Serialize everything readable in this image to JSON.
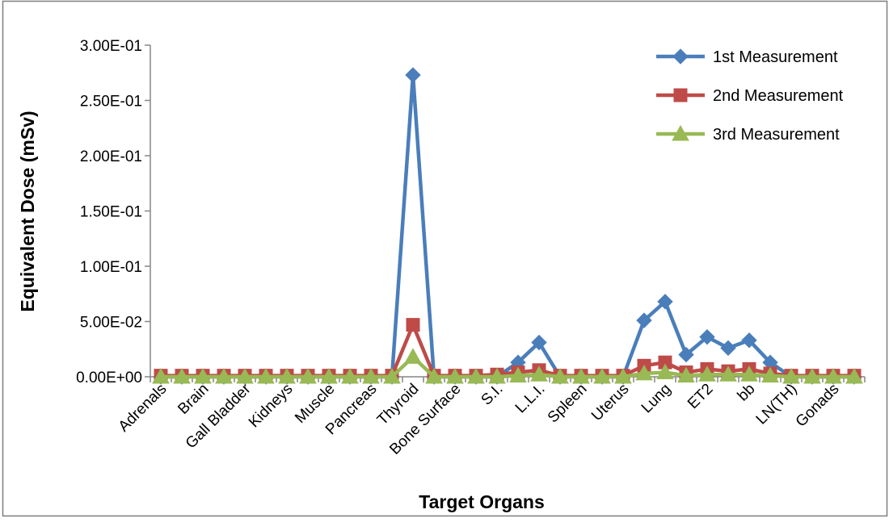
{
  "chart_data": {
    "type": "line",
    "xlabel": "Target Organs",
    "ylabel": "Equivalent Dose (mSv)",
    "ylim": [
      0,
      0.3
    ],
    "yticks": [
      0,
      0.05,
      0.1,
      0.15,
      0.2,
      0.25,
      0.3
    ],
    "ytick_labels": [
      "0.00E+00",
      "5.00E-02",
      "1.00E-01",
      "1.50E-01",
      "2.00E-01",
      "2.50E-01",
      "3.00E-01"
    ],
    "grid": false,
    "legend_position": "top-right",
    "categories": [
      "Adrenals",
      "",
      "Brain",
      "",
      "Gall Bladder",
      "",
      "Kidneys",
      "",
      "Muscle",
      "",
      "Pancreas",
      "",
      "Thyroid",
      "",
      "Bone Surface",
      "",
      "S.I.",
      "",
      "L.L.I.",
      "",
      "Spleen",
      "",
      "Uterus",
      "",
      "Lung",
      "",
      "ET2",
      "",
      "bb",
      "",
      "LN(TH)",
      "",
      "Gonads",
      ""
    ],
    "series": [
      {
        "name": "1st Measurement",
        "color": "#4a7ebb",
        "marker": "diamond",
        "values": [
          0,
          0,
          0,
          0,
          0,
          0,
          0,
          0,
          0,
          0,
          0,
          0,
          0.273,
          0,
          0,
          0,
          0,
          0.013,
          0.031,
          0,
          0,
          0,
          0,
          0.051,
          0.068,
          0.02,
          0.036,
          0.026,
          0.033,
          0.013,
          0,
          0,
          0,
          0
        ]
      },
      {
        "name": "2nd Measurement",
        "color": "#be4b48",
        "marker": "square",
        "values": [
          0.001,
          0.001,
          0.001,
          0.001,
          0.001,
          0.001,
          0.001,
          0.001,
          0.001,
          0.001,
          0.001,
          0.001,
          0.047,
          0.001,
          0.001,
          0.001,
          0.002,
          0.004,
          0.006,
          0.001,
          0.001,
          0.001,
          0.001,
          0.01,
          0.013,
          0.004,
          0.007,
          0.005,
          0.007,
          0.003,
          0.001,
          0.001,
          0.001,
          0.001
        ]
      },
      {
        "name": "3rd Measurement",
        "color": "#98b954",
        "marker": "triangle",
        "values": [
          0,
          0,
          0,
          0,
          0,
          0,
          0,
          0,
          0,
          0,
          0,
          0,
          0.018,
          0,
          0,
          0,
          0,
          0.001,
          0.002,
          0,
          0,
          0,
          0,
          0.003,
          0.004,
          0.001,
          0.002,
          0.002,
          0.002,
          0.001,
          0,
          0,
          0,
          0
        ]
      }
    ]
  }
}
